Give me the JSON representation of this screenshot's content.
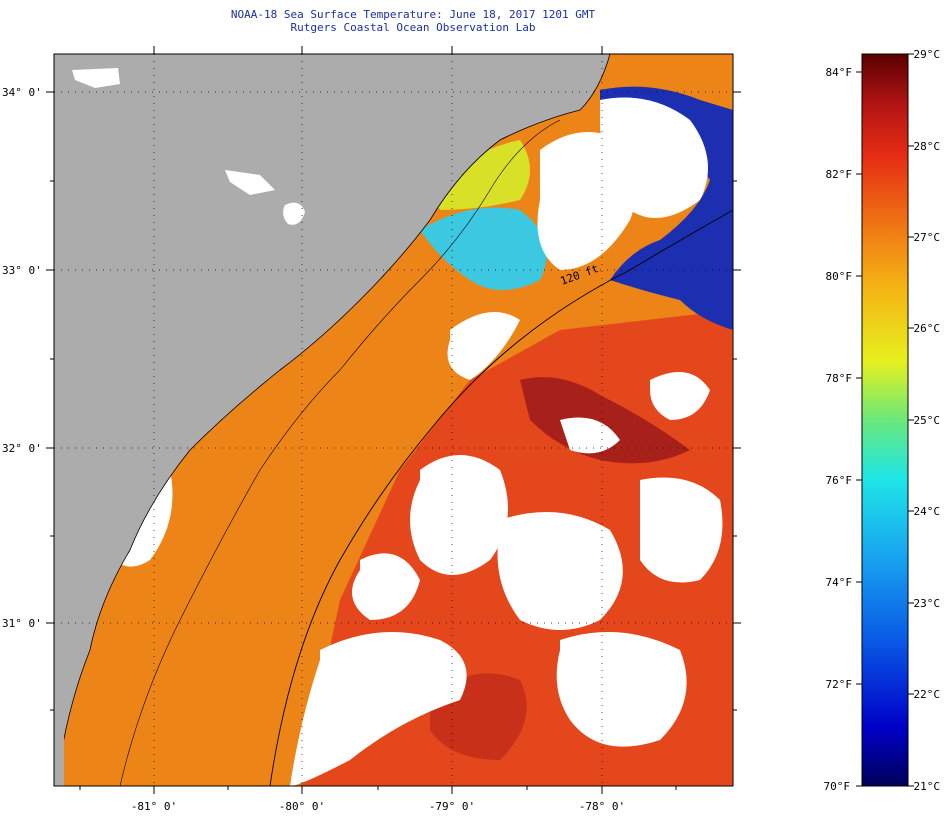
{
  "header": {
    "title": "NOAA-18 Sea Surface Temperature:  June 18, 2017 1201 GMT",
    "subtitle": "Rutgers Coastal Ocean Observation Lab"
  },
  "map": {
    "lat_labels": [
      "34° 0'",
      "33° 0'",
      "32° 0'",
      "31° 0'"
    ],
    "lon_labels": [
      "-81° 0'",
      "-80° 0'",
      "-79° 0'",
      "-78° 0'"
    ],
    "contour_label": "120 ft",
    "colors": {
      "land": "#acacac",
      "cloud": "#ffffff",
      "warm": "#e8441c",
      "hot": "#8e1a16",
      "mid": "#f08a18",
      "cool": "#1fd0ea",
      "cold": "#1a2ab0"
    }
  },
  "legend": {
    "fahrenheit": [
      "84°F",
      "82°F",
      "80°F",
      "78°F",
      "76°F",
      "74°F",
      "72°F",
      "70°F"
    ],
    "celsius": [
      "29°C",
      "28°C",
      "27°C",
      "26°C",
      "25°C",
      "24°C",
      "23°C",
      "22°C",
      "21°C"
    ]
  }
}
